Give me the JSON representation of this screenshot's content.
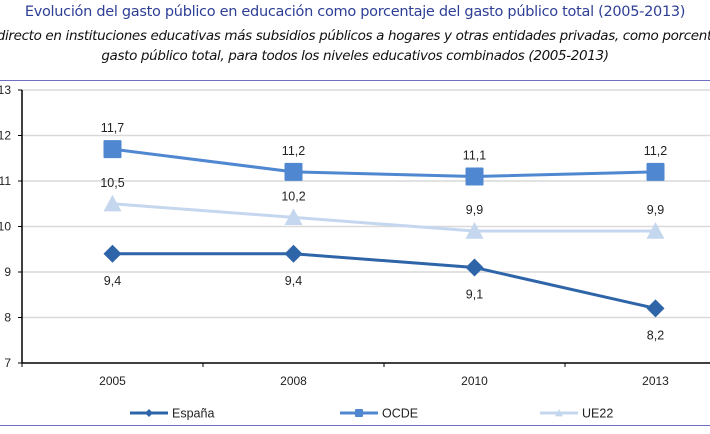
{
  "title": "Evolución del gasto público en educación como porcentaje del gasto público total (2005-2013)",
  "subtitle_line1": "Gasto directo en instituciones educativas más subsidios públicos a hogares y otras entidades privadas, como porcentaje del",
  "subtitle_line2": "gasto público total, para todos los niveles educativos combinados (2005-2013)",
  "chart_data": {
    "type": "line",
    "title": "Evolución del gasto público en educación como porcentaje del gasto público total (2005-2013)",
    "xlabel": "",
    "ylabel": "",
    "categories": [
      "2005",
      "2008",
      "2010",
      "2013"
    ],
    "ylim": [
      7,
      13
    ],
    "yticks": [
      "13",
      "12",
      "11",
      "10",
      "9",
      "8",
      "7"
    ],
    "grid": true,
    "legend_position": "bottom",
    "series": [
      {
        "name": "España",
        "values": [
          9.4,
          9.4,
          9.1,
          8.2
        ],
        "labels": [
          "9,4",
          "9,4",
          "9,1",
          "8,2"
        ],
        "color": "#2e64a8",
        "marker": "diamond",
        "label_position": "below"
      },
      {
        "name": "OCDE",
        "values": [
          11.7,
          11.2,
          11.1,
          11.2
        ],
        "labels": [
          "11,7",
          "11,2",
          "11,1",
          "11,2"
        ],
        "color": "#4f88d0",
        "marker": "square",
        "label_position": "above"
      },
      {
        "name": "UE22",
        "values": [
          10.5,
          10.2,
          9.9,
          9.9
        ],
        "labels": [
          "10,5",
          "10,2",
          "9,9",
          "9,9"
        ],
        "color": "#c4d7ee",
        "marker": "triangle",
        "label_position": "above"
      }
    ]
  }
}
